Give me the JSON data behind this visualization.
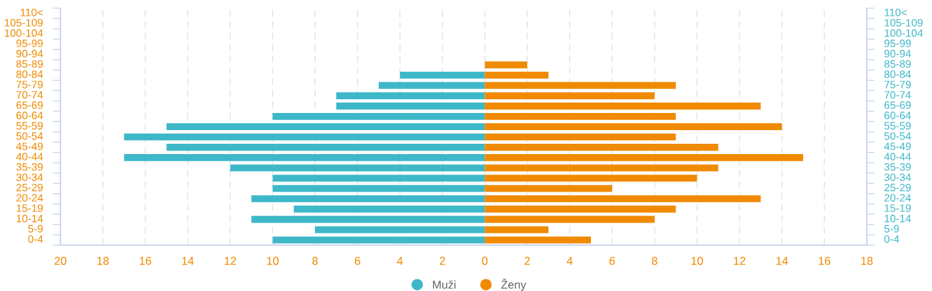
{
  "chart_data": {
    "type": "bar",
    "orientation": "horizontal",
    "stacked": true,
    "categories": [
      "110<",
      "105-109",
      "100-104",
      "95-99",
      "90-94",
      "85-89",
      "80-84",
      "75-79",
      "70-74",
      "65-69",
      "60-64",
      "55-59",
      "50-54",
      "45-49",
      "40-44",
      "35-39",
      "30-34",
      "25-29",
      "20-24",
      "15-19",
      "10-14",
      "5-9",
      "0-4"
    ],
    "series": [
      {
        "name": "Muži",
        "color": "#3eb8c8",
        "values": [
          null,
          null,
          null,
          null,
          null,
          null,
          -4,
          -5,
          -7,
          -7,
          -10,
          -15,
          -17,
          -15,
          -17,
          -12,
          -10,
          -10,
          -11,
          -9,
          -11,
          -8,
          -10
        ]
      },
      {
        "name": "Ženy",
        "color": "#f08a00",
        "values": [
          null,
          null,
          null,
          null,
          null,
          2,
          3,
          9,
          8,
          13,
          9,
          14,
          9,
          11,
          15,
          11,
          10,
          6,
          13,
          9,
          8,
          3,
          5
        ]
      }
    ],
    "xlim": [
      -20,
      18
    ],
    "xticks": [
      {
        "value": -20,
        "label": "20"
      },
      {
        "value": -18,
        "label": "18"
      },
      {
        "value": -16,
        "label": "16"
      },
      {
        "value": -14,
        "label": "14"
      },
      {
        "value": -12,
        "label": "12"
      },
      {
        "value": -10,
        "label": "10"
      },
      {
        "value": -8,
        "label": "8"
      },
      {
        "value": -6,
        "label": "6"
      },
      {
        "value": -4,
        "label": "4"
      },
      {
        "value": -2,
        "label": "2"
      },
      0,
      2,
      4,
      6,
      8,
      10,
      12,
      14,
      16,
      18
    ],
    "grid": "x",
    "legend": "bottom"
  }
}
